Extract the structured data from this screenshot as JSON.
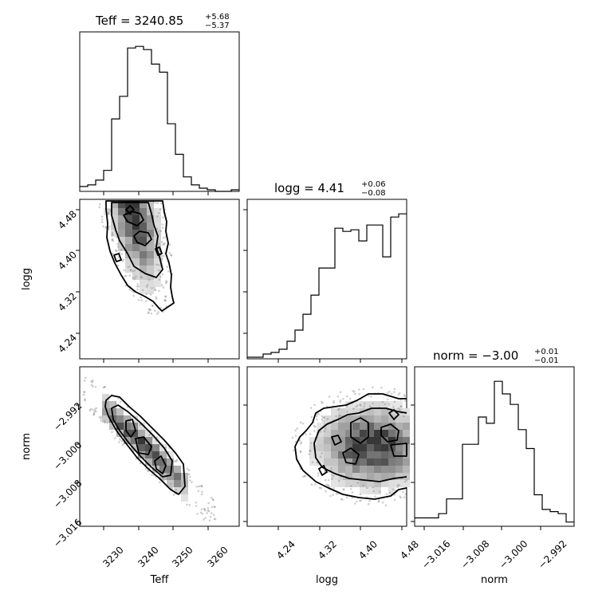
{
  "chart_data": [
    {
      "type": "histogram",
      "panel": "Teff",
      "title": {
        "main": "Teff = 3240.85",
        "sup": "+5.68",
        "sub": "−5.37"
      },
      "xlabel": "Teff",
      "xlim": [
        3222,
        3268
      ],
      "x_ticks": [
        "3230",
        "3240",
        "3250",
        "3260"
      ],
      "bins_x": [
        3222,
        3224.3,
        3226.6,
        3228.9,
        3231.2,
        3233.5,
        3235.8,
        3238.1,
        3240.4,
        3242.7,
        3245,
        3247.3,
        3249.6,
        3251.9,
        3254.2,
        3256.5,
        3258.8,
        3261.1,
        3263.4,
        3265.7,
        3268
      ],
      "counts": [
        3,
        4,
        7,
        13,
        45,
        59,
        89,
        90,
        88,
        79,
        74,
        42,
        23,
        9,
        4,
        2,
        1,
        0,
        0,
        1
      ]
    },
    {
      "type": "histogram",
      "panel": "logg",
      "title": {
        "main": "logg = 4.41",
        "sup": "+0.06",
        "sub": "−0.08"
      },
      "xlabel": "logg",
      "xlim": [
        4.18,
        4.49
      ],
      "x_ticks": [
        "4.24",
        "4.32",
        "4.40",
        "4.48"
      ],
      "bins_x": [
        4.18,
        4.1955,
        4.211,
        4.2265,
        4.242,
        4.2575,
        4.273,
        4.2885,
        4.304,
        4.3195,
        4.335,
        4.3505,
        4.366,
        4.3815,
        4.397,
        4.4125,
        4.428,
        4.4435,
        4.459,
        4.4745,
        4.49
      ],
      "counts": [
        1,
        1,
        3,
        4,
        6,
        11,
        18,
        28,
        40,
        57,
        57,
        82,
        80,
        81,
        74,
        84,
        84,
        64,
        89,
        91
      ]
    },
    {
      "type": "histogram",
      "panel": "norm",
      "title": {
        "main": "norm = −3.00",
        "sup": "+0.01",
        "sub": "−0.01"
      },
      "xlabel": "norm",
      "xlim": [
        -3.018,
        -2.985
      ],
      "x_ticks": [
        "−3.016",
        "−3.008",
        "−3.000",
        "−2.992"
      ],
      "bins_x": [
        -3.018,
        -3.01635,
        -3.0147,
        -3.01305,
        -3.0114,
        -3.00975,
        -3.0081,
        -3.00645,
        -3.0048,
        -3.00315,
        -3.0015,
        -2.99985,
        -2.9982,
        -2.99655,
        -2.9949,
        -2.99325,
        -2.9916,
        -2.98995,
        -2.9883,
        -2.98665,
        -2.985
      ],
      "counts": [
        4,
        4,
        4,
        6,
        13,
        13,
        39,
        39,
        52,
        49,
        69,
        63,
        58,
        46,
        37,
        15,
        8,
        7,
        6,
        2
      ]
    },
    {
      "type": "contour-2d",
      "panel": "logg vs Teff",
      "x": "Teff",
      "y": "logg",
      "xlim": [
        3222,
        3268
      ],
      "ylim": [
        4.18,
        4.49
      ],
      "y_ticks": [
        "4.24",
        "4.32",
        "4.40",
        "4.48"
      ],
      "ylabel": "logg",
      "peak": {
        "x": 3237.5,
        "y": 4.475
      }
    },
    {
      "type": "contour-2d",
      "panel": "norm vs Teff",
      "x": "Teff",
      "y": "norm",
      "xlim": [
        3222,
        3268
      ],
      "ylim": [
        -3.018,
        -2.985
      ],
      "y_ticks": [
        "−2.992",
        "−3.000",
        "−3.008",
        "−3.016"
      ],
      "ylabel": "norm",
      "peak": {
        "x": 3240,
        "y": -3.0
      }
    },
    {
      "type": "contour-2d",
      "panel": "norm vs logg",
      "x": "logg",
      "y": "norm",
      "xlim": [
        4.18,
        4.49
      ],
      "ylim": [
        -3.018,
        -2.985
      ],
      "peak": {
        "x": 4.41,
        "y": -3.0
      }
    }
  ]
}
